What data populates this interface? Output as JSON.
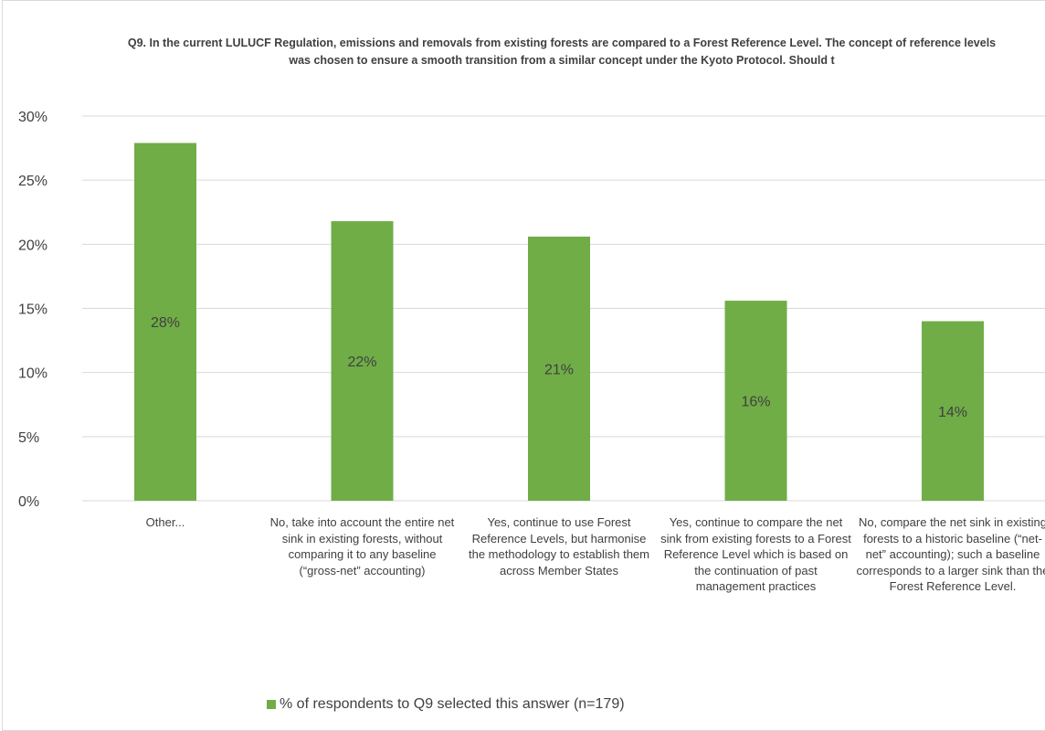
{
  "chart_data": {
    "type": "bar",
    "title": "Q9. In the current LULUCF Regulation, emissions and removals from existing forests are compared to a Forest Reference Level. The concept of reference levels was chosen to ensure a smooth transition from a similar  concept under the Kyoto Protocol. Should t",
    "categories": [
      "Other...",
      "No, take into account the entire net sink in existing forests, without comparing it to any baseline (“gross-net” accounting)",
      "Yes, continue to use Forest Reference Levels, but harmonise the methodology to establish them across Member States",
      "Yes, continue to compare the net sink from existing forests to a Forest Reference Level which is based on the continuation of past management practices",
      "No, compare the net sink in existing forests to a historic baseline (“net-net” accounting); such a baseline corresponds  to a larger sink than the Forest Reference Level."
    ],
    "series": [
      {
        "name": "% of respondents to Q9 selected this answer (n=179)",
        "values": [
          27.9,
          21.8,
          20.6,
          15.6,
          14.0
        ],
        "data_labels": [
          "28%",
          "22%",
          "21%",
          "16%",
          "14%"
        ]
      }
    ],
    "y_ticks": [
      "0%",
      "5%",
      "10%",
      "15%",
      "20%",
      "25%",
      "30%"
    ],
    "ylim": [
      0,
      30
    ],
    "grid": true,
    "legend_position": "bottom",
    "colors": {
      "bar": "#70ad47",
      "grid": "#d9d9d9",
      "text": "#404040"
    }
  }
}
